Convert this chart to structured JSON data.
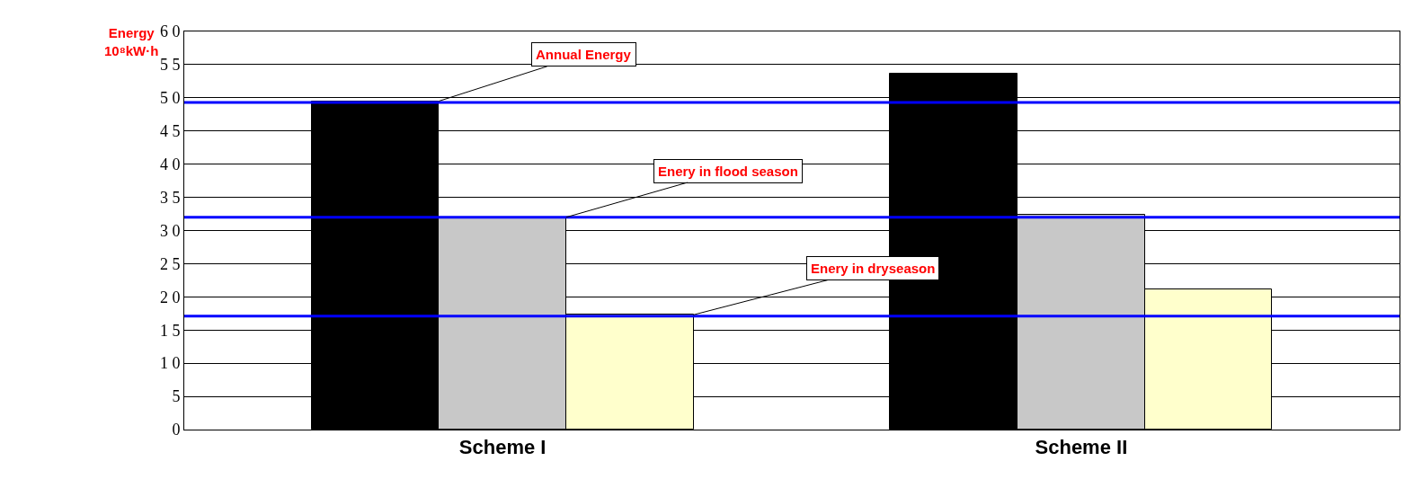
{
  "chart_data": {
    "type": "bar",
    "ylabel": "Energy\n10⁸kW·h",
    "categories": [
      "Scheme I",
      "Scheme II"
    ],
    "series": [
      {
        "name": "Annual Energy",
        "color": "#000000",
        "values": [
          49.5,
          53.6
        ]
      },
      {
        "name": "Enery in flood season",
        "color": "#c8c8c8",
        "values": [
          32,
          32.4
        ]
      },
      {
        "name": "Enery in dryseason",
        "color": "#ffffcc",
        "values": [
          17.3,
          21.1
        ]
      }
    ],
    "ylim": [
      0,
      60
    ],
    "yticks": [
      {
        "value": 0,
        "label": "0"
      },
      {
        "value": 5,
        "label": "5"
      },
      {
        "value": 10,
        "label": "1 0"
      },
      {
        "value": 15,
        "label": "1 5"
      },
      {
        "value": 20,
        "label": "2 0"
      },
      {
        "value": 25,
        "label": "2 5"
      },
      {
        "value": 30,
        "label": "3 0"
      },
      {
        "value": 35,
        "label": "3 5"
      },
      {
        "value": 40,
        "label": "4 0"
      },
      {
        "value": 45,
        "label": "4 5"
      },
      {
        "value": 50,
        "label": "5 0"
      },
      {
        "value": 55,
        "label": "5 5"
      },
      {
        "value": 60,
        "label": "6 0"
      }
    ],
    "ref_lines": [
      {
        "axis": "y",
        "value": 49.3,
        "color": "#0000ff"
      },
      {
        "axis": "y",
        "value": 32,
        "color": "#0000ff"
      },
      {
        "axis": "y",
        "value": 17.1,
        "color": "#0000ff"
      }
    ],
    "grid": "y",
    "legend": false
  }
}
